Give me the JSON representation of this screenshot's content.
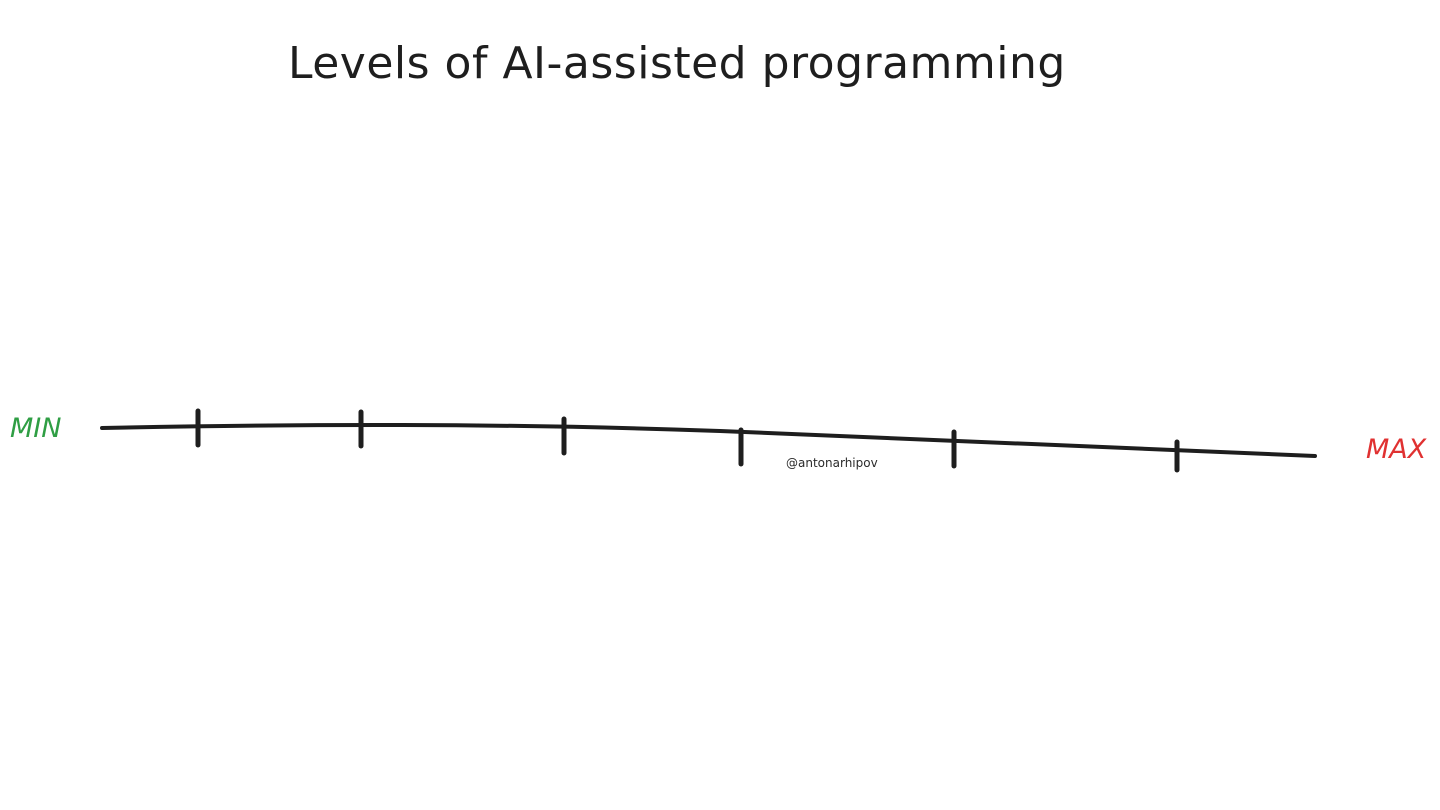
{
  "title": "Levels of AI-assisted programming",
  "scale": {
    "min_label": "MIN",
    "max_label": "MAX",
    "min_color": "#2f9e44",
    "max_color": "#e03131",
    "line_color": "#1e1e1e",
    "tick_count": 6
  },
  "watermark": "@antonarhipov"
}
